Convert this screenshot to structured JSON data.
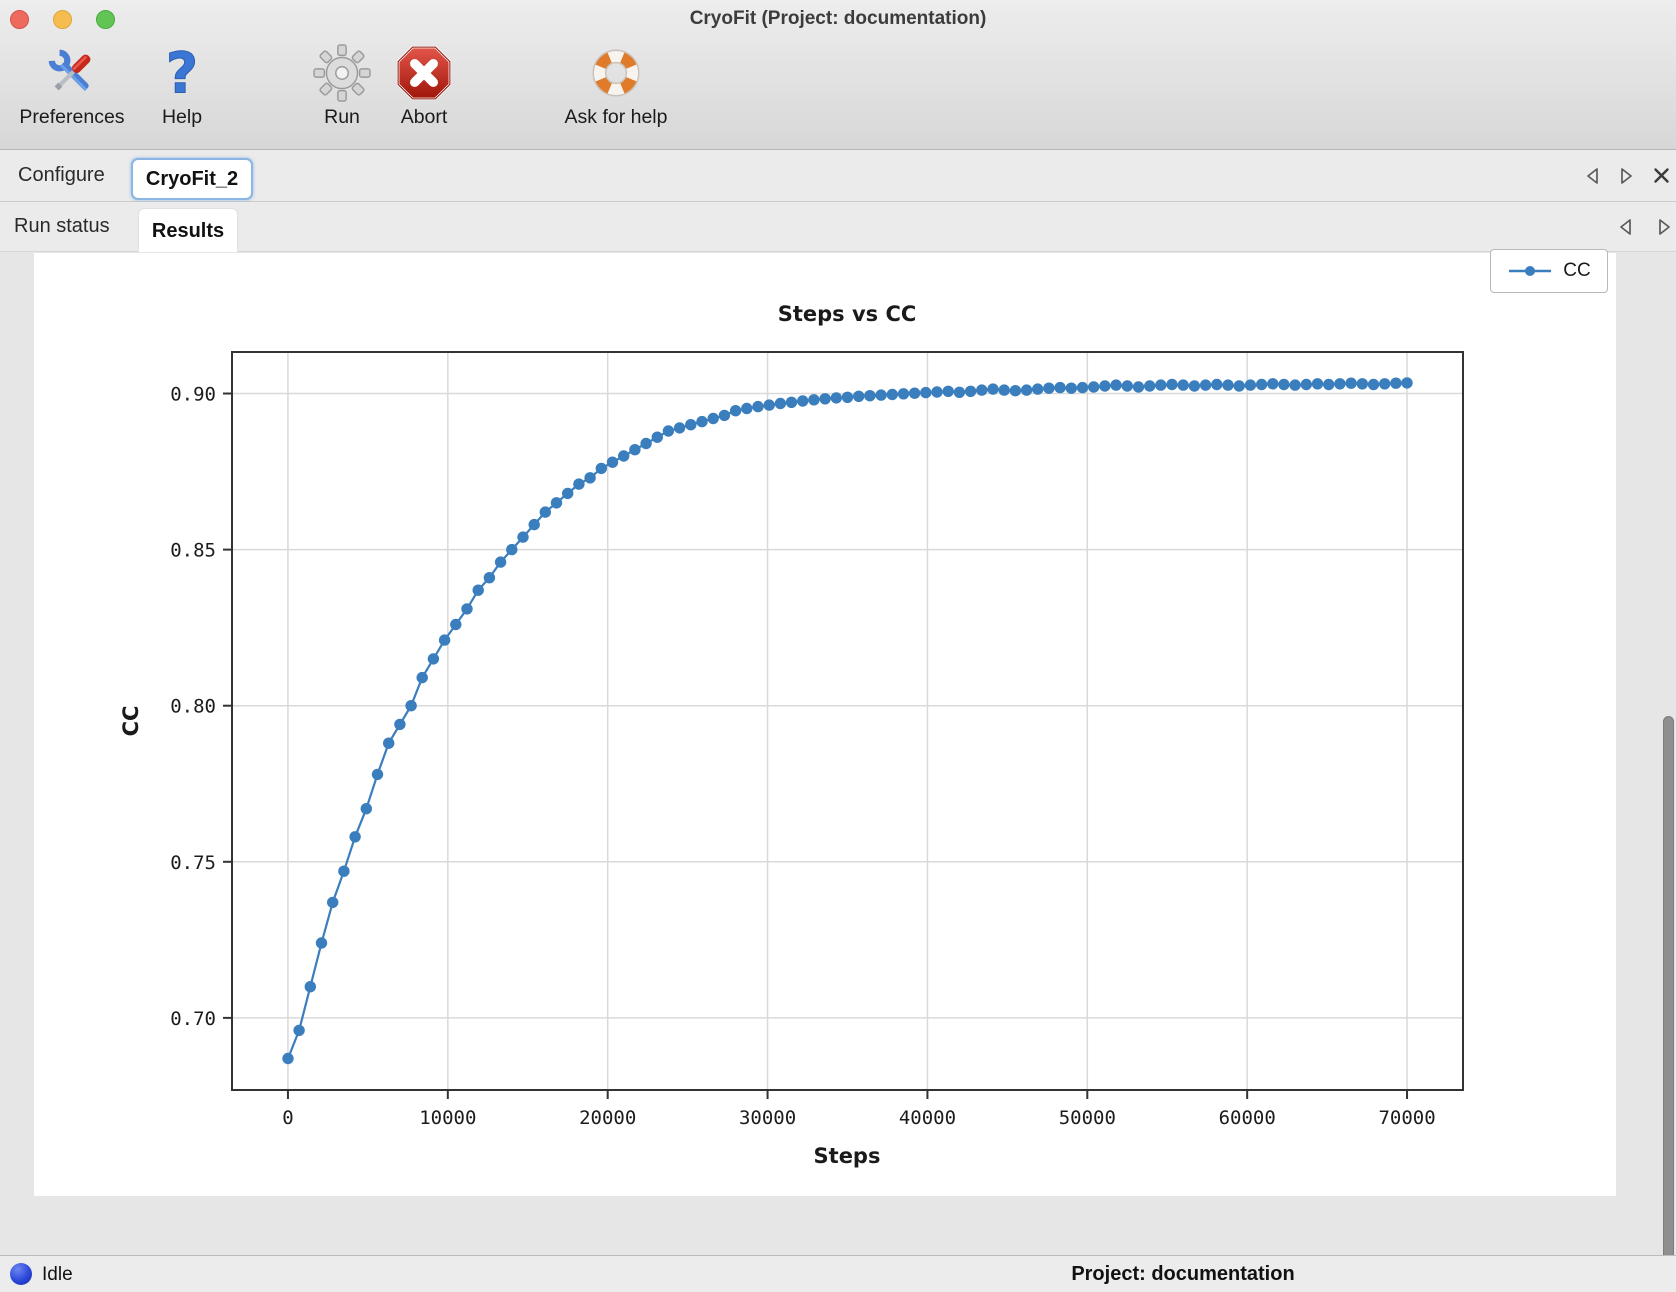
{
  "window": {
    "title": "CryoFit (Project: documentation)"
  },
  "toolbar": {
    "buttons": [
      {
        "label": "Preferences",
        "icon": "tools-icon"
      },
      {
        "label": "Help",
        "icon": "question-icon"
      },
      {
        "label": "Run",
        "icon": "gear-icon"
      },
      {
        "label": "Abort",
        "icon": "abort-icon"
      },
      {
        "label": "Ask for help",
        "icon": "lifebuoy-icon"
      }
    ]
  },
  "tab_bars": {
    "main": {
      "tabs": [
        {
          "label": "Configure"
        },
        {
          "label": "CryoFit_2",
          "active": true
        }
      ]
    },
    "sub": {
      "tabs": [
        {
          "label": "Run status"
        },
        {
          "label": "Results",
          "active": true
        }
      ]
    }
  },
  "status_bar": {
    "state": "Idle",
    "project": "Project: documentation"
  },
  "colors": {
    "series_blue": "#3a7ebd",
    "grid": "#d9d9d9",
    "spine": "#333333",
    "accent_tab_border": "#8ab5e4",
    "status_dot_blue": "#2b48d8"
  },
  "chart_data": {
    "type": "line",
    "title": "Steps vs CC",
    "xlabel": "Steps",
    "ylabel": "CC",
    "legend": [
      {
        "label": "CC",
        "color": "#3a7ebd",
        "position": "upper right"
      }
    ],
    "grid": true,
    "marker": "o",
    "xlim": [
      -3500,
      73500
    ],
    "ylim": [
      0.6769,
      0.9133
    ],
    "xticks": [
      0,
      10000,
      20000,
      30000,
      40000,
      50000,
      60000,
      70000
    ],
    "xtick_labels": [
      "0",
      "10000",
      "20000",
      "30000",
      "40000",
      "50000",
      "60000",
      "70000"
    ],
    "yticks": [
      0.7,
      0.75,
      0.8,
      0.85,
      0.9
    ],
    "ytick_labels": [
      "0.70",
      "0.75",
      "0.80",
      "0.85",
      "0.90"
    ],
    "x": [
      0,
      700,
      1400,
      2100,
      2800,
      3500,
      4200,
      4900,
      5600,
      6300,
      7000,
      7700,
      8400,
      9100,
      9800,
      10500,
      11200,
      11900,
      12600,
      13300,
      14000,
      14700,
      15400,
      16100,
      16800,
      17500,
      18200,
      18900,
      19600,
      20300,
      21000,
      21700,
      22400,
      23100,
      23800,
      24500,
      25200,
      25900,
      26600,
      27300,
      28000,
      28700,
      29400,
      30100,
      30800,
      31500,
      32200,
      32900,
      33600,
      34300,
      35000,
      35700,
      36400,
      37100,
      37800,
      38500,
      39200,
      39900,
      40600,
      41300,
      42000,
      42700,
      43400,
      44100,
      44800,
      45500,
      46200,
      46900,
      47600,
      48300,
      49000,
      49700,
      50400,
      51100,
      51800,
      52500,
      53200,
      53900,
      54600,
      55300,
      56000,
      56700,
      57400,
      58100,
      58800,
      59500,
      60200,
      60900,
      61600,
      62300,
      63000,
      63700,
      64400,
      65100,
      65800,
      66500,
      67200,
      67900,
      68600,
      69300,
      70000
    ],
    "y": [
      0.687,
      0.696,
      0.71,
      0.724,
      0.737,
      0.747,
      0.758,
      0.767,
      0.778,
      0.788,
      0.794,
      0.8,
      0.809,
      0.815,
      0.821,
      0.826,
      0.831,
      0.837,
      0.841,
      0.846,
      0.85,
      0.854,
      0.858,
      0.862,
      0.865,
      0.868,
      0.871,
      0.873,
      0.876,
      0.878,
      0.88,
      0.882,
      0.884,
      0.886,
      0.888,
      0.889,
      0.89,
      0.891,
      0.892,
      0.893,
      0.8945,
      0.8952,
      0.8958,
      0.8963,
      0.8968,
      0.8972,
      0.8976,
      0.898,
      0.8983,
      0.8986,
      0.8988,
      0.8991,
      0.8993,
      0.8995,
      0.8997,
      0.8999,
      0.9001,
      0.9003,
      0.9005,
      0.9007,
      0.9004,
      0.9007,
      0.9011,
      0.9014,
      0.9011,
      0.9009,
      0.9011,
      0.9014,
      0.9017,
      0.9019,
      0.9017,
      0.9019,
      0.9021,
      0.9024,
      0.9027,
      0.9024,
      0.9021,
      0.9024,
      0.9027,
      0.9029,
      0.9027,
      0.9024,
      0.9027,
      0.9029,
      0.9027,
      0.9024,
      0.9027,
      0.9029,
      0.9031,
      0.9029,
      0.9027,
      0.9029,
      0.9031,
      0.9029,
      0.9031,
      0.9033,
      0.9031,
      0.9029,
      0.9031,
      0.9033,
      0.9034
    ]
  }
}
